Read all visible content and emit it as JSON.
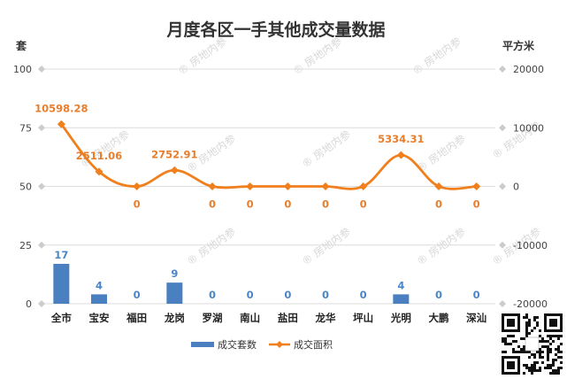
{
  "watermark": "房地内参",
  "chart_data": {
    "type": "bar",
    "title": "月度各区一手其他成交量数据",
    "categories": [
      "全市",
      "宝安",
      "福田",
      "龙岗",
      "罗湖",
      "南山",
      "盐田",
      "龙华",
      "坪山",
      "光明",
      "大鹏",
      "深汕"
    ],
    "series": [
      {
        "name": "成交套数",
        "type": "bar",
        "axis": "left",
        "color": "#4a7fc0",
        "values": [
          17,
          4,
          0,
          9,
          0,
          0,
          0,
          0,
          0,
          4,
          0,
          0
        ],
        "labels": [
          "17",
          "4",
          "0",
          "9",
          "0",
          "0",
          "0",
          "0",
          "0",
          "4",
          "0",
          "0"
        ]
      },
      {
        "name": "成交面积",
        "type": "line",
        "axis": "right",
        "color": "#f07f1c",
        "values": [
          10598.28,
          2511.06,
          0,
          2752.91,
          0,
          0,
          0,
          0,
          0,
          5334.31,
          0,
          0
        ],
        "labels": [
          "10598.28",
          "2511.06",
          "0",
          "2752.91",
          "0",
          "0",
          "0",
          "0",
          "0",
          "5334.31",
          "0",
          "0"
        ]
      }
    ],
    "y_left": {
      "unit": "套",
      "min": 0,
      "max": 100,
      "ticks": [
        0,
        25,
        50,
        75,
        100
      ]
    },
    "y_right": {
      "unit": "平方米",
      "min": -20000,
      "max": 20000,
      "ticks": [
        -20000,
        -10000,
        0,
        10000,
        20000
      ]
    },
    "grid": true,
    "legend": "bottom"
  }
}
